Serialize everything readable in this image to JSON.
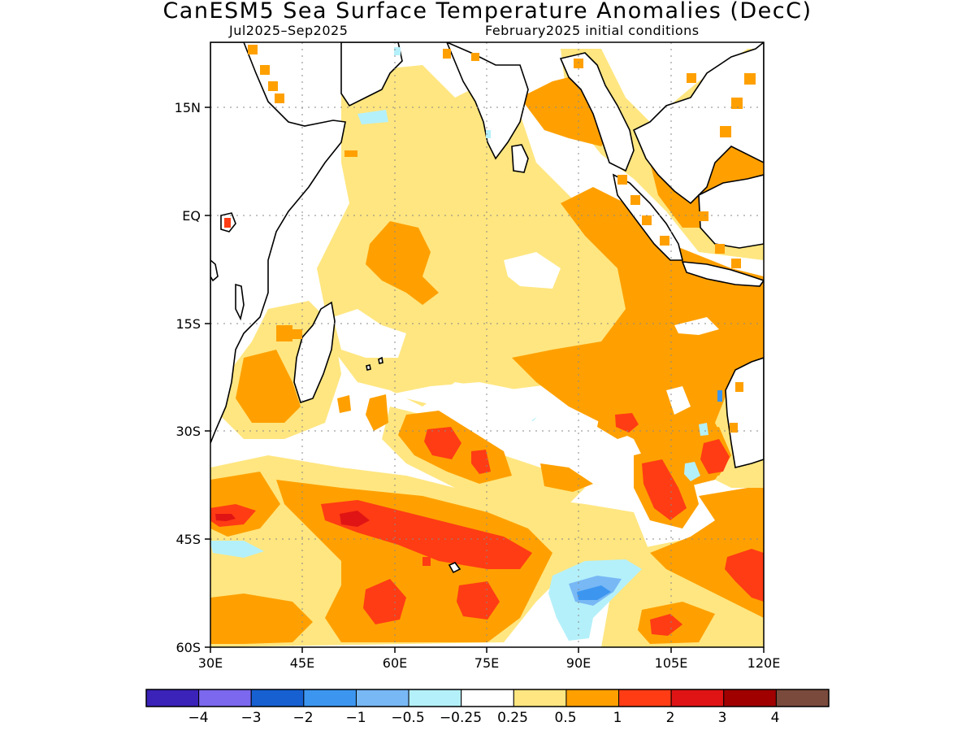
{
  "title": "CanESM5 Sea Surface Temperature Anomalies (DecC)",
  "subtitle_left": "Jul2025–Sep2025",
  "subtitle_right": "February2025 initial conditions",
  "map": {
    "region": "Indian Ocean",
    "lon_range": [
      30,
      120
    ],
    "lat_range": [
      -60,
      24
    ],
    "lon_ticks": [
      "30E",
      "45E",
      "60E",
      "75E",
      "90E",
      "105E",
      "120E"
    ],
    "lat_ticks": [
      "15N",
      "EQ",
      "15S",
      "30S",
      "45S",
      "60S"
    ],
    "grid": "dotted"
  },
  "colorbar": {
    "colors": [
      "#3b22b8",
      "#7b68ee",
      "#1660d2",
      "#3c96f0",
      "#78b8f5",
      "#b4f0fa",
      "#ffffff",
      "#ffe680",
      "#ffa000",
      "#ff3c14",
      "#e01414",
      "#a00000",
      "#7a4a3c"
    ],
    "labels": [
      "−4",
      "−3",
      "−2",
      "−1",
      "−0.5",
      "−0.25",
      "0.25",
      "0.5",
      "1",
      "2",
      "3",
      "4"
    ]
  }
}
